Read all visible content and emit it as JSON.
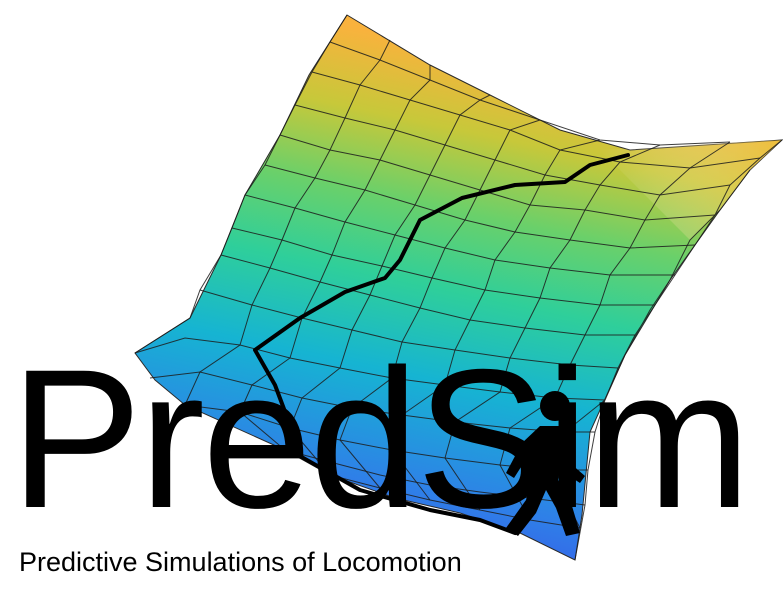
{
  "logo": {
    "wordmark": "PredSim",
    "tagline": "Predictive Simulations of Locomotion",
    "icons": {
      "surface": "cost-landscape-surface-icon",
      "path": "optimization-path-icon",
      "walker": "walking-person-icon"
    },
    "colors": {
      "text": "#000000",
      "surface_low": "#3f3ee6",
      "surface_mid": "#1fb5c8",
      "surface_high": "#f7b63e"
    }
  }
}
